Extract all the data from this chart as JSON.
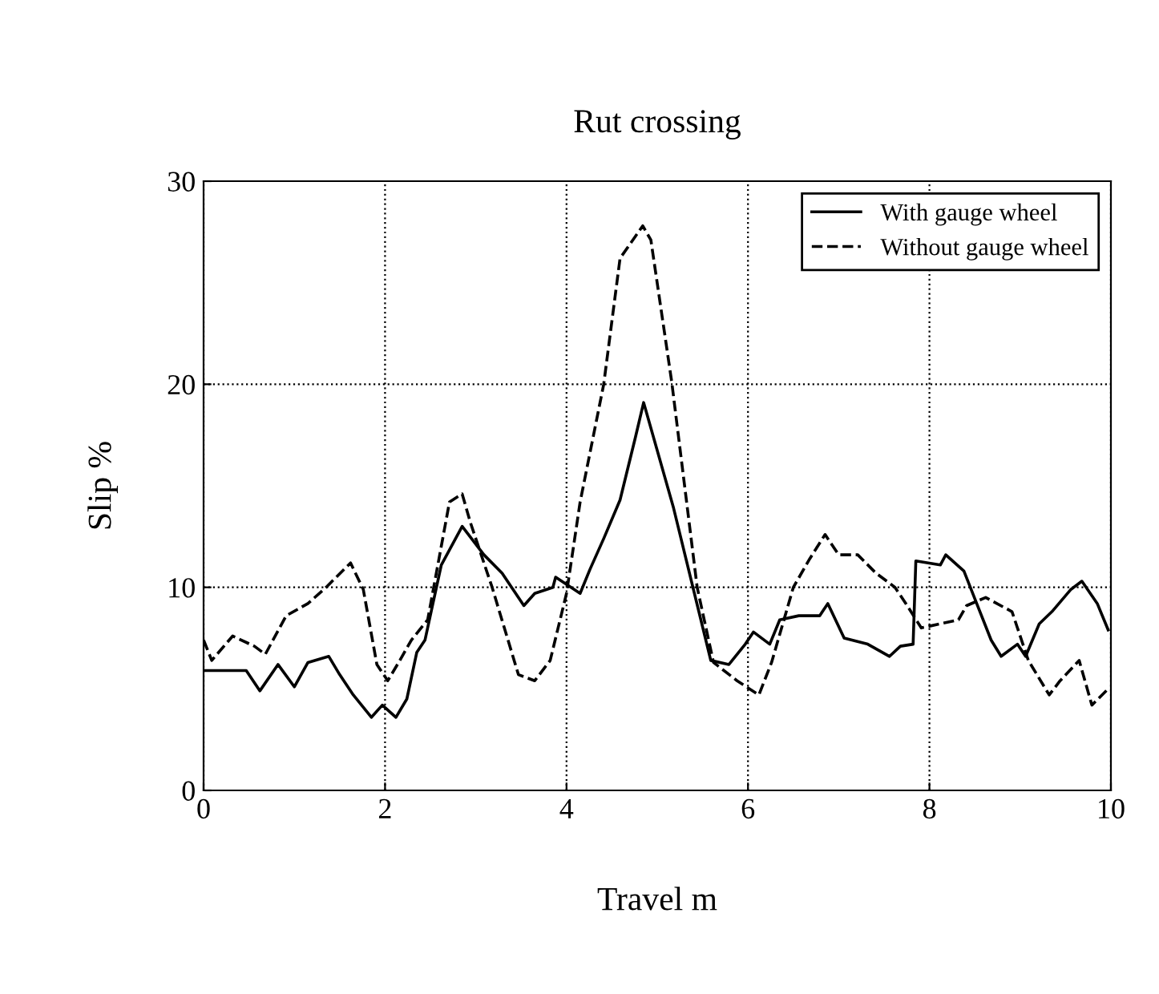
{
  "chart_data": {
    "type": "line",
    "title": "Rut crossing",
    "xlabel": "Travel m",
    "ylabel": "Slip %",
    "xlim": [
      0,
      10
    ],
    "ylim": [
      0,
      30
    ],
    "xticks": [
      0,
      2,
      4,
      6,
      8,
      10
    ],
    "yticks": [
      0,
      10,
      20,
      30
    ],
    "grid": true,
    "legend": "top right",
    "series": [
      {
        "name": "With gauge wheel",
        "color": "#000000",
        "line_style": "solid",
        "x": [
          0,
          0.47,
          0.62,
          0.82,
          1.0,
          1.15,
          1.38,
          1.5,
          1.65,
          1.85,
          1.97,
          2.12,
          2.24,
          2.35,
          2.44,
          2.62,
          2.85,
          3.09,
          3.29,
          3.53,
          3.65,
          3.85,
          3.88,
          4.15,
          4.26,
          4.41,
          4.59,
          4.76,
          4.85,
          5.18,
          5.59,
          5.79,
          5.97,
          6.06,
          6.24,
          6.35,
          6.56,
          6.79,
          6.88,
          7.06,
          7.32,
          7.56,
          7.68,
          7.82,
          7.85,
          8.12,
          8.18,
          8.38,
          8.68,
          8.79,
          8.97,
          9.06,
          9.21,
          9.35,
          9.56,
          9.68,
          9.85,
          9.97
        ],
        "values": [
          5.9,
          5.9,
          4.9,
          6.2,
          5.1,
          6.3,
          6.6,
          5.7,
          4.7,
          3.6,
          4.2,
          3.6,
          4.5,
          6.8,
          7.4,
          11.1,
          13.0,
          11.6,
          10.7,
          9.1,
          9.7,
          10.0,
          10.5,
          9.7,
          10.9,
          12.4,
          14.3,
          17.4,
          19.1,
          13.9,
          6.4,
          6.2,
          7.2,
          7.8,
          7.2,
          8.4,
          8.6,
          8.6,
          9.2,
          7.5,
          7.2,
          6.6,
          7.1,
          7.2,
          11.3,
          11.1,
          11.6,
          10.8,
          7.4,
          6.6,
          7.2,
          6.6,
          8.2,
          8.8,
          9.9,
          10.3,
          9.2,
          7.9
        ]
      },
      {
        "name": "Without gauge wheel",
        "color": "#000000",
        "line_style": "dashed",
        "x": [
          0,
          0.09,
          0.32,
          0.56,
          0.68,
          0.91,
          1.15,
          1.35,
          1.62,
          1.76,
          1.91,
          2.03,
          2.15,
          2.29,
          2.47,
          2.59,
          2.71,
          2.85,
          2.94,
          3.18,
          3.47,
          3.65,
          3.82,
          4.0,
          4.15,
          4.41,
          4.59,
          4.84,
          4.93,
          5.16,
          5.44,
          5.62,
          5.88,
          6.12,
          6.26,
          6.5,
          6.68,
          6.85,
          7.0,
          7.21,
          7.41,
          7.62,
          7.74,
          7.91,
          8.32,
          8.41,
          8.62,
          8.91,
          9.09,
          9.32,
          9.44,
          9.65,
          9.79,
          9.97
        ],
        "values": [
          7.4,
          6.4,
          7.6,
          7.1,
          6.7,
          8.6,
          9.2,
          10.0,
          11.2,
          9.9,
          6.2,
          5.4,
          6.3,
          7.4,
          8.4,
          11.3,
          14.2,
          14.6,
          13.2,
          10.0,
          5.7,
          5.4,
          6.4,
          9.7,
          14.2,
          20.0,
          26.2,
          27.8,
          27.1,
          20.1,
          10.0,
          6.3,
          5.4,
          4.7,
          6.3,
          10.0,
          11.4,
          12.6,
          11.6,
          11.6,
          10.7,
          10.0,
          9.2,
          8.0,
          8.4,
          9.1,
          9.5,
          8.8,
          6.4,
          4.7,
          5.4,
          6.4,
          4.2,
          5.0
        ]
      }
    ]
  }
}
